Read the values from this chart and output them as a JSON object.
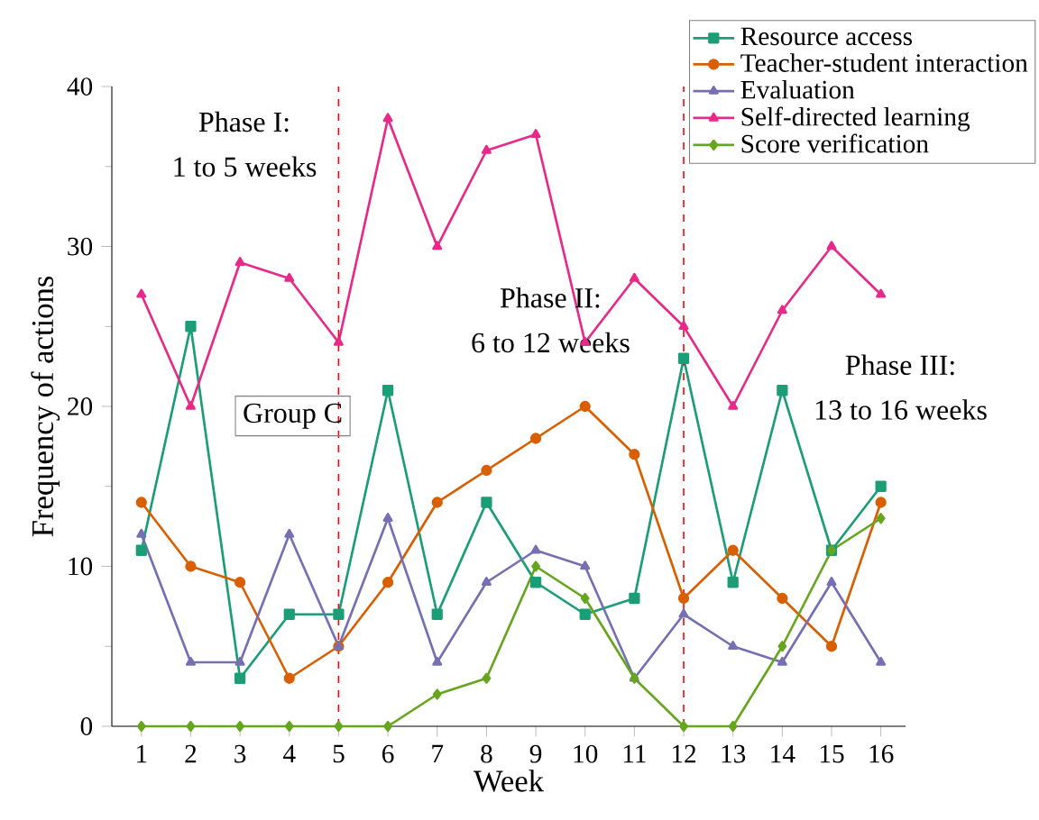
{
  "chart_data": {
    "type": "line",
    "xlabel": "Week",
    "ylabel": "Frequency of actions",
    "x": [
      1,
      2,
      3,
      4,
      5,
      6,
      7,
      8,
      9,
      10,
      11,
      12,
      13,
      14,
      15,
      16
    ],
    "xlim": [
      0.4,
      16.5
    ],
    "xticks": [
      1,
      2,
      3,
      4,
      5,
      6,
      7,
      8,
      9,
      10,
      11,
      12,
      13,
      14,
      15,
      16
    ],
    "ylim": [
      0,
      40
    ],
    "yticks": [
      0,
      10,
      20,
      30,
      40
    ],
    "legend": "top right",
    "grid": false,
    "line_style": "solid",
    "series": [
      {
        "name": "Resource access",
        "color": "#1b9e77",
        "marker": "square",
        "values": [
          11,
          25,
          3,
          7,
          7,
          21,
          7,
          14,
          9,
          7,
          8,
          23,
          9,
          21,
          11,
          15
        ]
      },
      {
        "name": "Teacher-student interaction",
        "color": "#d95f02",
        "marker": "circle",
        "values": [
          14,
          10,
          9,
          3,
          5,
          9,
          14,
          16,
          18,
          20,
          17,
          8,
          11,
          8,
          5,
          14
        ]
      },
      {
        "name": "Evaluation",
        "color": "#7570b3",
        "marker": "triangle",
        "values": [
          12,
          4,
          4,
          12,
          5,
          13,
          4,
          9,
          11,
          10,
          3,
          7,
          5,
          4,
          9,
          4
        ]
      },
      {
        "name": "Self-directed learning",
        "color": "#e7298a",
        "marker": "triangle",
        "values": [
          27,
          20,
          29,
          28,
          24,
          38,
          30,
          36,
          37,
          24,
          28,
          25,
          20,
          26,
          30,
          27
        ]
      },
      {
        "name": "Score verification",
        "color": "#66a61e",
        "marker": "diamond",
        "values": [
          0,
          0,
          0,
          0,
          0,
          0,
          2,
          3,
          10,
          8,
          3,
          0,
          0,
          5,
          11,
          13
        ]
      }
    ],
    "ref_lines": [
      {
        "axis": "x",
        "value": 5,
        "color": "#ff0000",
        "line_style": "dashed"
      },
      {
        "axis": "x",
        "value": 12,
        "color": "#ff0000",
        "line_style": "dashed"
      }
    ],
    "annotations": [
      "Phase I:",
      "1 to 5 weeks",
      "Phase II:",
      "6 to 12 weeks",
      "Phase III:",
      "13 to 16 weeks",
      "Group C"
    ]
  }
}
